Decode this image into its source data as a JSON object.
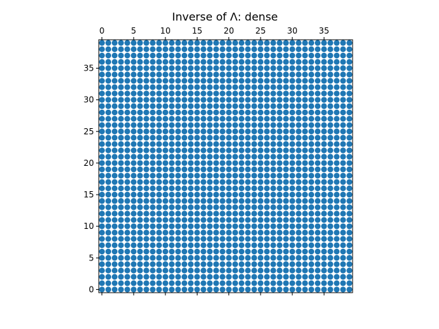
{
  "chart_data": {
    "type": "scatter",
    "title": "Inverse of Λ: dense",
    "matrix_size": 40,
    "xlim": [
      -0.5,
      39.5
    ],
    "ylim": [
      39.5,
      -0.5
    ],
    "x_axis_position": "top",
    "x_ticks": [
      0,
      5,
      10,
      15,
      20,
      25,
      30,
      35
    ],
    "y_ticks": [
      0,
      5,
      10,
      15,
      20,
      25,
      30,
      35
    ],
    "x_tick_labels": [
      "0",
      "5",
      "10",
      "15",
      "20",
      "25",
      "30",
      "35"
    ],
    "y_tick_labels": [
      "0",
      "5",
      "10",
      "15",
      "20",
      "25",
      "30",
      "35"
    ],
    "nonzero_pattern": "all entries nonzero",
    "grid": false,
    "marker_color": "#1f77b4"
  }
}
